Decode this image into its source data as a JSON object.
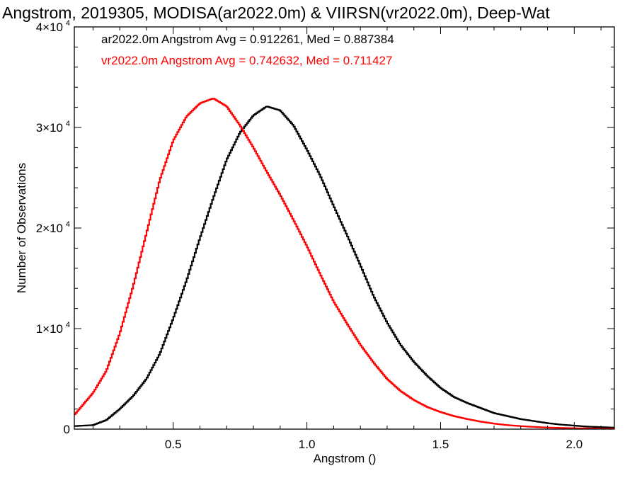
{
  "chart_data": {
    "type": "line",
    "title": "Angstrom, 2019305, MODISA(ar2022.0m) & VIIRSN(vr2022.0m), Deep-Wat",
    "xlabel": "Angstrom ()",
    "ylabel": "Number of Observations",
    "xlim": [
      0.13,
      2.15
    ],
    "ylim": [
      0,
      40000
    ],
    "x_ticks": [
      {
        "value": 0.5,
        "label": "0.5"
      },
      {
        "value": 1.0,
        "label": "1.0"
      },
      {
        "value": 1.5,
        "label": "1.5"
      },
      {
        "value": 2.0,
        "label": "2.0"
      }
    ],
    "y_ticks": [
      {
        "value": 0,
        "label": "0"
      },
      {
        "value": 10000,
        "label": "1×10",
        "exp": "4"
      },
      {
        "value": 20000,
        "label": "2×10",
        "exp": "4"
      },
      {
        "value": 30000,
        "label": "3×10",
        "exp": "4"
      },
      {
        "value": 40000,
        "label": "4×10",
        "exp": "4"
      }
    ],
    "grid": false,
    "legend_position": "top-left",
    "series": [
      {
        "name": "ar2022.0m Angstrom Avg = 0.912261, Med = 0.887384",
        "color": "#000000",
        "style": "step",
        "points": [
          [
            0.13,
            300
          ],
          [
            0.2,
            400
          ],
          [
            0.25,
            900
          ],
          [
            0.3,
            2000
          ],
          [
            0.35,
            3300
          ],
          [
            0.4,
            5000
          ],
          [
            0.45,
            7500
          ],
          [
            0.5,
            11000
          ],
          [
            0.55,
            14800
          ],
          [
            0.6,
            19000
          ],
          [
            0.65,
            23000
          ],
          [
            0.7,
            26800
          ],
          [
            0.75,
            29500
          ],
          [
            0.8,
            31200
          ],
          [
            0.85,
            32100
          ],
          [
            0.9,
            31700
          ],
          [
            0.95,
            30200
          ],
          [
            1.0,
            27800
          ],
          [
            1.05,
            25200
          ],
          [
            1.1,
            22200
          ],
          [
            1.15,
            19300
          ],
          [
            1.2,
            16300
          ],
          [
            1.25,
            13200
          ],
          [
            1.3,
            10600
          ],
          [
            1.35,
            8400
          ],
          [
            1.4,
            6700
          ],
          [
            1.45,
            5300
          ],
          [
            1.5,
            4100
          ],
          [
            1.55,
            3200
          ],
          [
            1.6,
            2600
          ],
          [
            1.65,
            2100
          ],
          [
            1.7,
            1600
          ],
          [
            1.75,
            1300
          ],
          [
            1.8,
            1000
          ],
          [
            1.85,
            800
          ],
          [
            1.9,
            600
          ],
          [
            1.95,
            450
          ],
          [
            2.0,
            350
          ],
          [
            2.05,
            250
          ],
          [
            2.1,
            200
          ],
          [
            2.15,
            150
          ]
        ]
      },
      {
        "name": "vr2022.0m Angstrom Avg = 0.742632, Med = 0.711427",
        "color": "#ff0000",
        "style": "step",
        "points": [
          [
            0.13,
            1400
          ],
          [
            0.2,
            3600
          ],
          [
            0.25,
            5800
          ],
          [
            0.3,
            9500
          ],
          [
            0.35,
            14200
          ],
          [
            0.4,
            19500
          ],
          [
            0.45,
            24800
          ],
          [
            0.5,
            28700
          ],
          [
            0.55,
            31100
          ],
          [
            0.6,
            32400
          ],
          [
            0.65,
            32900
          ],
          [
            0.7,
            32100
          ],
          [
            0.75,
            30200
          ],
          [
            0.8,
            28000
          ],
          [
            0.85,
            25600
          ],
          [
            0.9,
            23300
          ],
          [
            0.95,
            20800
          ],
          [
            1.0,
            18200
          ],
          [
            1.05,
            15400
          ],
          [
            1.1,
            12700
          ],
          [
            1.15,
            10500
          ],
          [
            1.2,
            8400
          ],
          [
            1.25,
            6600
          ],
          [
            1.3,
            5000
          ],
          [
            1.35,
            3800
          ],
          [
            1.4,
            2900
          ],
          [
            1.45,
            2200
          ],
          [
            1.5,
            1700
          ],
          [
            1.55,
            1300
          ],
          [
            1.6,
            1000
          ],
          [
            1.65,
            750
          ],
          [
            1.7,
            550
          ],
          [
            1.75,
            400
          ],
          [
            1.8,
            300
          ],
          [
            1.85,
            220
          ],
          [
            1.9,
            160
          ],
          [
            1.95,
            120
          ],
          [
            2.0,
            90
          ],
          [
            2.05,
            70
          ],
          [
            2.1,
            50
          ],
          [
            2.15,
            40
          ]
        ]
      }
    ]
  }
}
